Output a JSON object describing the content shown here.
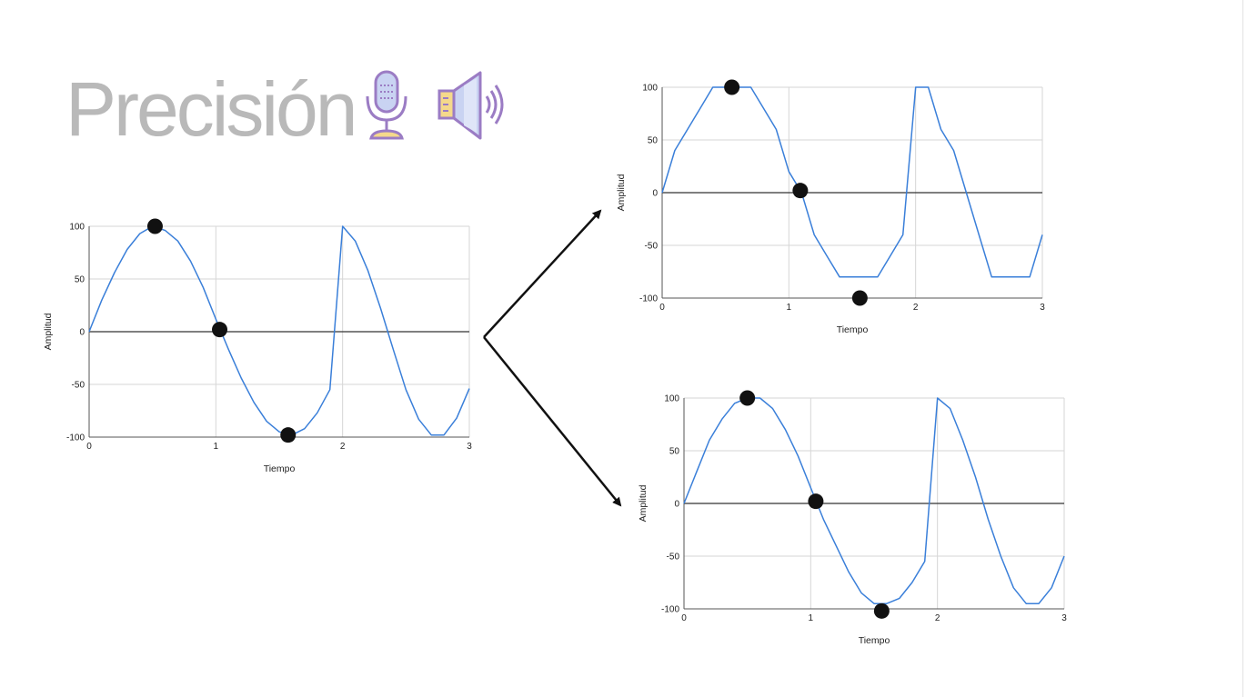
{
  "slide": {
    "title": "Precisión",
    "icons": [
      "microphone-icon",
      "speaker-icon"
    ]
  },
  "colors": {
    "line": "#3a7fd9",
    "grid": "#d6d6d6",
    "zero_line": "#333333",
    "marker": "#111111",
    "title": "#b9b9b9",
    "icon_purple": "#9b7cc4",
    "icon_fill_blue": "#c9d3f2",
    "icon_fill_yellow": "#f5d98b"
  },
  "chart_data": [
    {
      "id": "original",
      "type": "line",
      "xlabel": "Tiempo",
      "ylabel": "Amplitud",
      "xlim": [
        0,
        3
      ],
      "ylim": [
        -100,
        100
      ],
      "xticks": [
        "0",
        "1",
        "2",
        "3"
      ],
      "yticks": [
        "100",
        "50",
        "0",
        "-50",
        "-100"
      ],
      "grid": true,
      "series": [
        {
          "x": [
            0,
            0.1,
            0.2,
            0.3,
            0.4,
            0.5,
            0.6,
            0.7,
            0.8,
            0.9,
            1.0,
            1.1,
            1.2,
            1.3,
            1.4,
            1.5,
            1.6,
            1.7,
            1.8,
            1.9,
            2.0,
            2.1,
            2.2,
            2.3,
            2.4,
            2.5,
            2.6,
            2.7,
            2.8,
            2.9,
            3.0
          ],
          "y": [
            0,
            30,
            56,
            78,
            93,
            100,
            96,
            86,
            67,
            42,
            12,
            -17,
            -44,
            -67,
            -85,
            -95,
            -98,
            -92,
            -77,
            -55,
            100,
            86,
            58,
            22,
            -17,
            -55,
            -83,
            -98,
            -98,
            -82,
            -54
          ]
        }
      ],
      "markers": [
        {
          "x": 0.52,
          "y": 100
        },
        {
          "x": 1.03,
          "y": 2
        },
        {
          "x": 1.57,
          "y": -98
        }
      ]
    },
    {
      "id": "low-precision",
      "type": "line",
      "xlabel": "Tiempo",
      "ylabel": "Amplitud",
      "xlim": [
        0,
        3
      ],
      "ylim": [
        -100,
        100
      ],
      "xticks": [
        "0",
        "1",
        "2",
        "3"
      ],
      "yticks": [
        "100",
        "50",
        "0",
        "-50",
        "-100"
      ],
      "grid": true,
      "series": [
        {
          "x": [
            0,
            0.1,
            0.2,
            0.3,
            0.4,
            0.5,
            0.6,
            0.7,
            0.8,
            0.9,
            1.0,
            1.1,
            1.2,
            1.3,
            1.4,
            1.5,
            1.6,
            1.7,
            1.8,
            1.9,
            2.0,
            2.1,
            2.2,
            2.3,
            2.4,
            2.5,
            2.6,
            2.7,
            2.8,
            2.9,
            3.0
          ],
          "y": [
            0,
            40,
            60,
            80,
            100,
            100,
            100,
            100,
            80,
            60,
            20,
            0,
            -40,
            -60,
            -80,
            -80,
            -80,
            -80,
            -60,
            -40,
            100,
            100,
            60,
            40,
            0,
            -40,
            -80,
            -80,
            -80,
            -80,
            -40
          ]
        }
      ],
      "markers": [
        {
          "x": 0.55,
          "y": 100
        },
        {
          "x": 1.09,
          "y": 2
        },
        {
          "x": 1.56,
          "y": -100
        }
      ]
    },
    {
      "id": "high-precision",
      "type": "line",
      "xlabel": "Tiempo",
      "ylabel": "Amplitud",
      "xlim": [
        0,
        3
      ],
      "ylim": [
        -100,
        100
      ],
      "xticks": [
        "0",
        "1",
        "2",
        "3"
      ],
      "yticks": [
        "100",
        "50",
        "0",
        "-50",
        "-100"
      ],
      "grid": true,
      "series": [
        {
          "x": [
            0,
            0.1,
            0.2,
            0.3,
            0.4,
            0.5,
            0.6,
            0.7,
            0.8,
            0.9,
            1.0,
            1.1,
            1.2,
            1.3,
            1.4,
            1.5,
            1.6,
            1.7,
            1.8,
            1.9,
            2.0,
            2.1,
            2.2,
            2.3,
            2.4,
            2.5,
            2.6,
            2.7,
            2.8,
            2.9,
            3.0
          ],
          "y": [
            0,
            30,
            60,
            80,
            95,
            100,
            100,
            90,
            70,
            45,
            15,
            -15,
            -40,
            -65,
            -85,
            -95,
            -95,
            -90,
            -75,
            -55,
            100,
            90,
            60,
            25,
            -15,
            -50,
            -80,
            -95,
            -95,
            -80,
            -50
          ]
        }
      ],
      "markers": [
        {
          "x": 0.5,
          "y": 100
        },
        {
          "x": 1.04,
          "y": 2
        },
        {
          "x": 1.56,
          "y": -102
        }
      ]
    }
  ]
}
